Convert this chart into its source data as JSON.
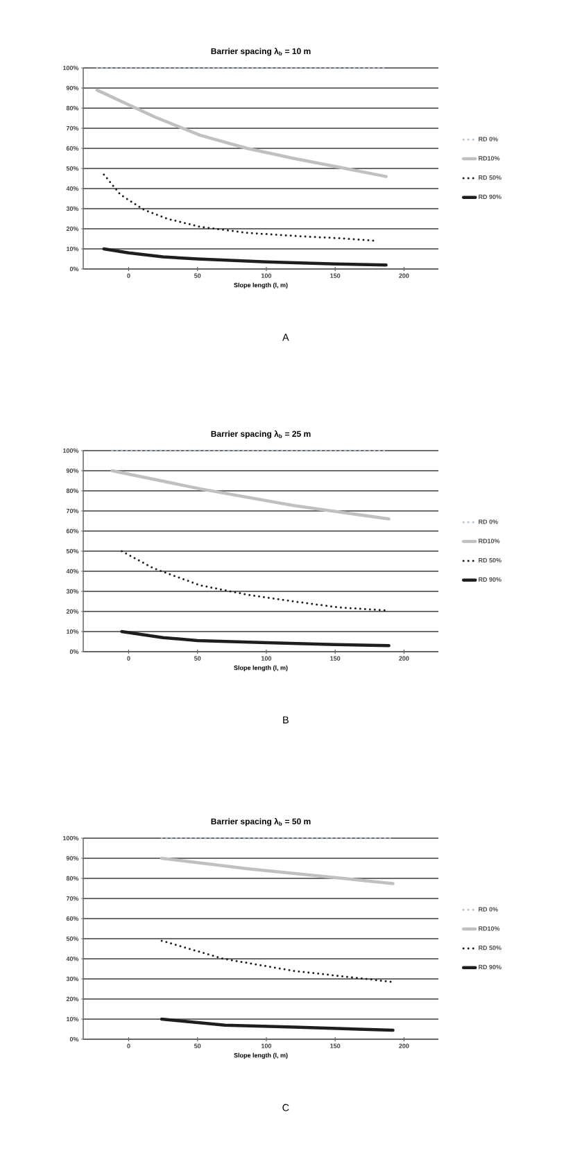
{
  "chart_data": [
    {
      "type": "line",
      "title": "Barrier spacing λ$_{b}$ = 10 m",
      "xlabel": "Slope length (l, m)",
      "xlim": [
        -33,
        225
      ],
      "xticks": [
        0,
        50,
        100,
        150,
        200
      ],
      "ylim": [
        0,
        100
      ],
      "yticks": [
        {
          "value": 0,
          "label": "0%"
        },
        {
          "value": 10,
          "label": "10%"
        },
        {
          "value": 20,
          "label": "20%"
        },
        {
          "value": 30,
          "label": "30%"
        },
        {
          "value": 40,
          "label": "40%"
        },
        {
          "value": 50,
          "label": "50%"
        },
        {
          "value": 60,
          "label": "60%"
        },
        {
          "value": 70,
          "label": "70%"
        },
        {
          "value": 80,
          "label": "80%"
        },
        {
          "value": 90,
          "label": "90%"
        },
        {
          "value": 100,
          "label": "100%"
        }
      ],
      "grid": "y",
      "legend": "right",
      "marker": "none",
      "annotations": [
        "A"
      ],
      "series": [
        {
          "name": "RD 0%",
          "color": "#b4c2d2",
          "line_style": "dotted",
          "x": [
            -23,
            187
          ],
          "values": [
            100,
            100
          ]
        },
        {
          "name": "RD10%",
          "color": "#c0c0c0",
          "line_style": "solid",
          "x": [
            -23,
            19,
            52,
            86,
            120,
            153,
            187
          ],
          "values": [
            89,
            75.6,
            66.5,
            60,
            55,
            50.6,
            46
          ]
        },
        {
          "name": "RD 50%",
          "color": "#1e1e1e",
          "line_style": "dotted",
          "x": [
            -18,
            -6,
            11,
            28,
            52,
            86,
            120,
            153,
            180
          ],
          "values": [
            47,
            37,
            29.5,
            25,
            21,
            18,
            16.5,
            15.3,
            14
          ]
        },
        {
          "name": "RD 90%",
          "color": "#1e1e1e",
          "line_style": "solid",
          "x": [
            -18,
            0,
            25,
            50,
            100,
            150,
            187
          ],
          "values": [
            10,
            8,
            6,
            5,
            3.5,
            2.5,
            2
          ]
        }
      ]
    },
    {
      "type": "line",
      "title": "Barrier spacing λ$_{b}$ = 25 m",
      "xlabel": "Slope length (l, m)",
      "xlim": [
        -33,
        225
      ],
      "xticks": [
        0,
        50,
        100,
        150,
        200
      ],
      "ylim": [
        0,
        100
      ],
      "yticks": [
        {
          "value": 0,
          "label": "0%"
        },
        {
          "value": 10,
          "label": "10%"
        },
        {
          "value": 20,
          "label": "20%"
        },
        {
          "value": 30,
          "label": "30%"
        },
        {
          "value": 40,
          "label": "40%"
        },
        {
          "value": 50,
          "label": "50%"
        },
        {
          "value": 60,
          "label": "60%"
        },
        {
          "value": 70,
          "label": "70%"
        },
        {
          "value": 80,
          "label": "80%"
        },
        {
          "value": 90,
          "label": "90%"
        },
        {
          "value": 100,
          "label": "100%"
        }
      ],
      "grid": "y",
      "legend": "right",
      "marker": "none",
      "annotations": [
        "B"
      ],
      "series": [
        {
          "name": "RD 0%",
          "color": "#b4c2d2",
          "line_style": "dotted",
          "x": [
            -12,
            189
          ],
          "values": [
            100,
            100
          ]
        },
        {
          "name": "RD10%",
          "color": "#c0c0c0",
          "line_style": "solid",
          "x": [
            -12,
            52,
            120,
            189
          ],
          "values": [
            90,
            81,
            72.7,
            66
          ]
        },
        {
          "name": "RD 50%",
          "color": "#1e1e1e",
          "line_style": "dotted",
          "x": [
            -5,
            18,
            52,
            86,
            120,
            153,
            189
          ],
          "values": [
            50,
            41.5,
            33,
            28.4,
            25,
            22,
            20.5
          ]
        },
        {
          "name": "RD 90%",
          "color": "#1e1e1e",
          "line_style": "solid",
          "x": [
            -5,
            25,
            50,
            100,
            150,
            189
          ],
          "values": [
            10,
            7,
            5.5,
            4.5,
            3.5,
            3
          ]
        }
      ]
    },
    {
      "type": "line",
      "title": "Barrier spacing λ$_{b}$ = 50 m",
      "xlabel": "Slope length (l, m)",
      "xlim": [
        -33,
        225
      ],
      "xticks": [
        0,
        50,
        100,
        150,
        200
      ],
      "ylim": [
        0,
        100
      ],
      "yticks": [
        {
          "value": 0,
          "label": "0%"
        },
        {
          "value": 10,
          "label": "10%"
        },
        {
          "value": 20,
          "label": "20%"
        },
        {
          "value": 30,
          "label": "30%"
        },
        {
          "value": 40,
          "label": "40%"
        },
        {
          "value": 50,
          "label": "50%"
        },
        {
          "value": 60,
          "label": "60%"
        },
        {
          "value": 70,
          "label": "70%"
        },
        {
          "value": 80,
          "label": "80%"
        },
        {
          "value": 90,
          "label": "90%"
        },
        {
          "value": 100,
          "label": "100%"
        }
      ],
      "grid": "y",
      "legend": "right",
      "marker": "none",
      "annotations": [
        "C"
      ],
      "series": [
        {
          "name": "RD 0%",
          "color": "#b4c2d2",
          "line_style": "dotted",
          "x": [
            24,
            192
          ],
          "values": [
            100,
            100
          ]
        },
        {
          "name": "RD10%",
          "color": "#c0c0c0",
          "line_style": "solid",
          "x": [
            24,
            86,
            153,
            192
          ],
          "values": [
            90,
            84.8,
            80.2,
            77.4
          ]
        },
        {
          "name": "RD 50%",
          "color": "#1e1e1e",
          "line_style": "dotted",
          "x": [
            24,
            69,
            120,
            192
          ],
          "values": [
            49,
            40,
            34,
            28.5
          ]
        },
        {
          "name": "RD 90%",
          "color": "#1e1e1e",
          "line_style": "solid",
          "x": [
            24,
            70,
            120,
            192
          ],
          "values": [
            10,
            7,
            6,
            4.5
          ]
        }
      ]
    }
  ]
}
